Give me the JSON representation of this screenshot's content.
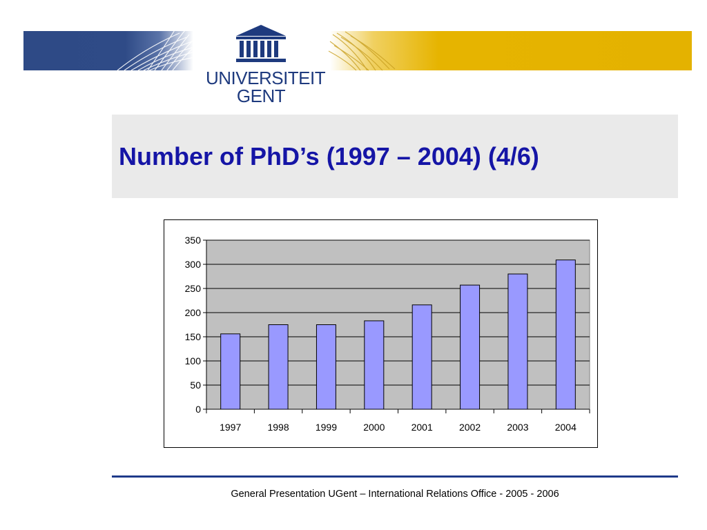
{
  "slide": {
    "title": "Number of PhD’s (1997 – 2004) (4/6)",
    "footer": "General Presentation UGent – International Relations Office - 2005 - 2006"
  },
  "logo": {
    "line1": "UNIVERSITEIT",
    "line2": "GENT",
    "icon": "temple-icon"
  },
  "colors": {
    "brand_blue": "#2e4a86",
    "brand_yellow": "#e4b200",
    "title": "#1515a6",
    "bar_fill": "#9999ff",
    "plot_bg": "#c0c0c0"
  },
  "chart_data": {
    "type": "bar",
    "categories": [
      "1997",
      "1998",
      "1999",
      "2000",
      "2001",
      "2002",
      "2003",
      "2004"
    ],
    "values": [
      156,
      175,
      175,
      183,
      216,
      257,
      280,
      309
    ],
    "title": "",
    "xlabel": "",
    "ylabel": "",
    "ylim": [
      0,
      350
    ],
    "yticks": [
      0,
      50,
      100,
      150,
      200,
      250,
      300,
      350
    ],
    "grid": true,
    "legend": "none"
  }
}
